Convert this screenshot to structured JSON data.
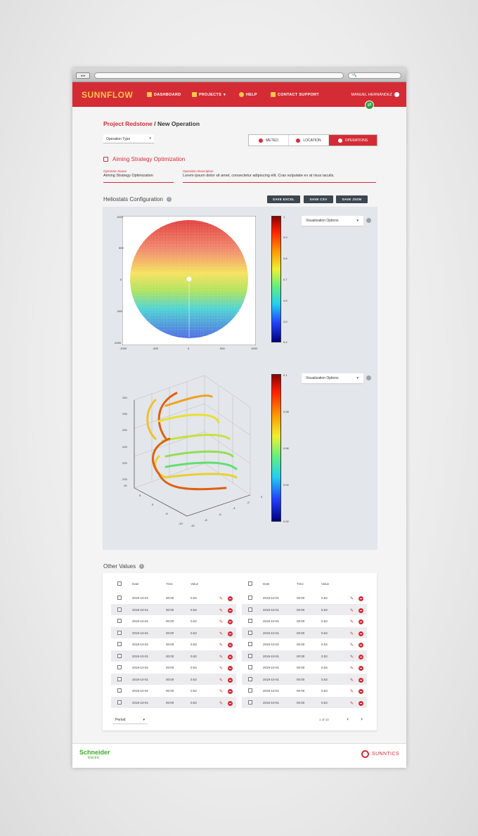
{
  "browser": {
    "nav": "◂ ▸",
    "search_icon": "🔍"
  },
  "app": {
    "logo": "SUNNFLOW",
    "menu": {
      "dashboard": "DASHBOARD",
      "projects": "PROJECTS",
      "help": "HELP",
      "contact": "CONTACT SUPPORT"
    },
    "user": "MANUEL HERNÁNDEZ",
    "accent": "#d52b35"
  },
  "breadcrumb": {
    "project": "Project Redstone",
    "sep": "/",
    "current": "New Operation"
  },
  "operation_type": {
    "label": "Operation Type"
  },
  "tabs": [
    {
      "label": "METEO"
    },
    {
      "label": "LOCATION"
    },
    {
      "label": "OPERATIONS",
      "selected": true
    }
  ],
  "section": {
    "title": "Aiming Strategy Optimization"
  },
  "fields": {
    "name": {
      "label": "Operation Name",
      "value": "Aiming Strategy Optimization"
    },
    "description": {
      "label": "Operation Description",
      "value": "Lorem ipsum dolor sit amet, consectetur adipiscing elit. Cras vulputate ex at risus iaculis."
    }
  },
  "heliostats": {
    "title": "Heliostats Configuration",
    "buttons": {
      "excel": "SAVE EXCEL",
      "csv": "SAVE CSV",
      "json": "SAVE JSON"
    },
    "viz_option": "Visualization Options"
  },
  "chart_data": [
    {
      "type": "scatter",
      "title": "",
      "description_of_marks": "polar field of heliostats colored by value",
      "xlim": [
        -1000,
        1000
      ],
      "ylim": [
        -1000,
        1000
      ],
      "xticks": [
        "-1000",
        "-500",
        "0",
        "500",
        "1000"
      ],
      "yticks": [
        "1000",
        "500",
        "0",
        "-500",
        "-1000"
      ],
      "colorbar": {
        "min": 0.4,
        "max": 1,
        "ticks": [
          "1",
          "0.9",
          "0.8",
          "0.7",
          "0.6",
          "0.5",
          "0.4"
        ]
      }
    },
    {
      "type": "scatter",
      "title": "",
      "zticks": [
        "240",
        "235",
        "230",
        "225",
        "220",
        "215",
        "210"
      ],
      "xticks_left": [
        "10",
        "5",
        "0",
        "-5",
        "-10"
      ],
      "xticks_right": [
        "0",
        "-2",
        "-4",
        "-6",
        "-8",
        "-10"
      ],
      "colorbar": {
        "min": 0.02,
        "max": 0.1,
        "ticks": [
          "0.1",
          "0.08",
          "0.06",
          "0.04",
          "0.02"
        ]
      }
    }
  ],
  "other_values": {
    "title": "Other Values",
    "headers": {
      "date": "Date",
      "time": "Time",
      "value": "Value"
    },
    "rows": [
      {
        "date": "2019-10-01",
        "time": "00:00",
        "value": "0.53"
      },
      {
        "date": "2019-10-01",
        "time": "00:00",
        "value": "0.53"
      },
      {
        "date": "2019-10-01",
        "time": "00:00",
        "value": "0.53"
      },
      {
        "date": "2019-10-01",
        "time": "00:00",
        "value": "0.53"
      },
      {
        "date": "2019-10-01",
        "time": "00:00",
        "value": "0.53"
      },
      {
        "date": "2019-10-01",
        "time": "00:00",
        "value": "0.53"
      },
      {
        "date": "2019-10-01",
        "time": "00:00",
        "value": "0.53"
      },
      {
        "date": "2019-10-01",
        "time": "00:00",
        "value": "0.53"
      },
      {
        "date": "2019-10-01",
        "time": "00:00",
        "value": "0.53"
      },
      {
        "date": "2019-10-01",
        "time": "00:00",
        "value": "0.53"
      }
    ],
    "period": "Period",
    "pagination": "1 of 10",
    "prev": "‹",
    "next": "›"
  },
  "footer": {
    "left_brand": "Schneider",
    "left_sub": "Electric",
    "right_brand": "SUNNTICS"
  }
}
